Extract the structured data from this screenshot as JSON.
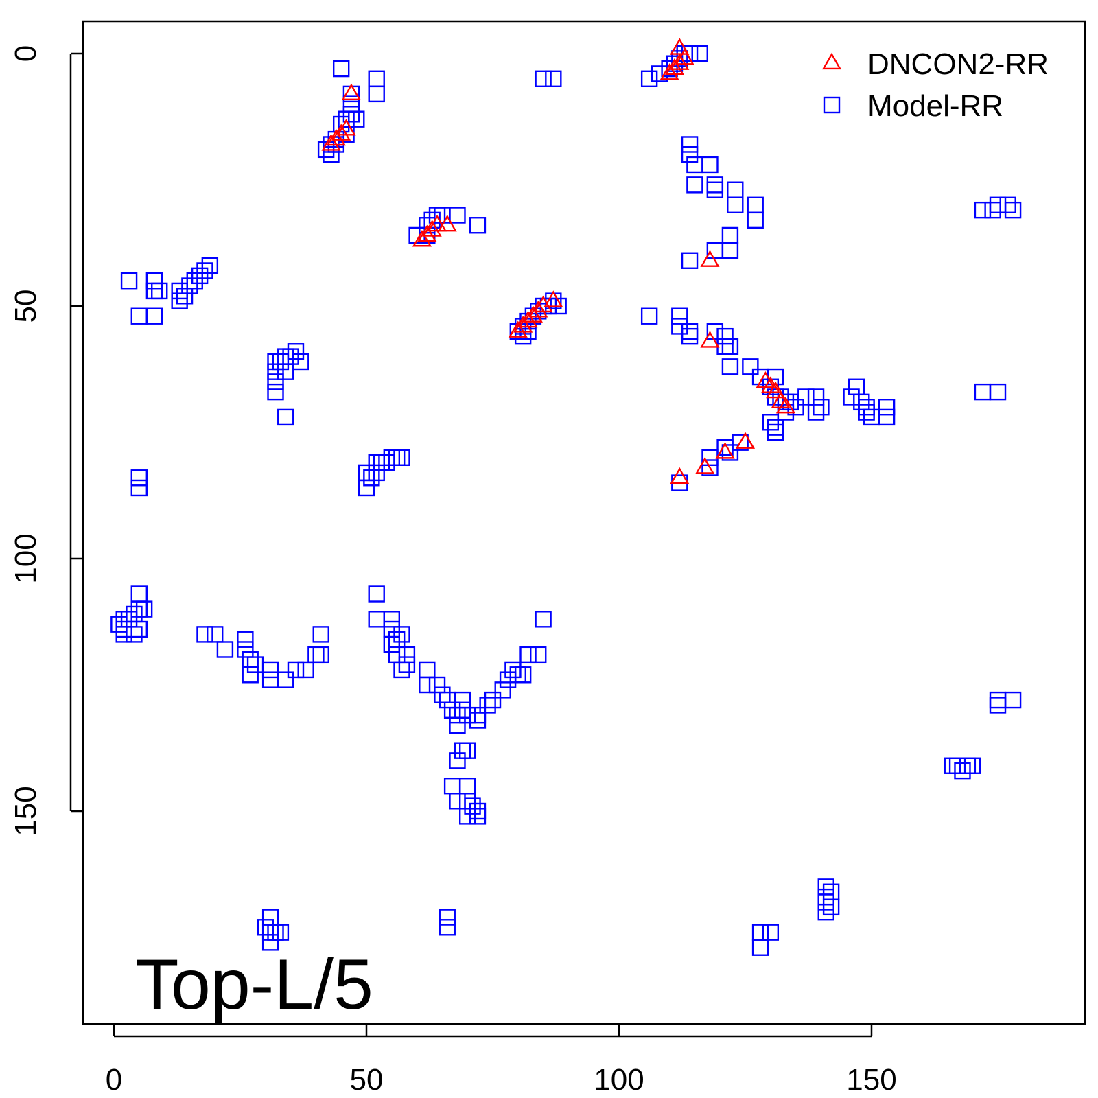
{
  "chart_data": {
    "type": "scatter",
    "title": "",
    "xlabel": "",
    "ylabel": "",
    "xlim": [
      -6,
      192
    ],
    "ylim": [
      -6,
      190
    ],
    "y_reversed": true,
    "x_ticks": [
      "0",
      "50",
      "100",
      "150"
    ],
    "x_tick_values": [
      0,
      50,
      100,
      150
    ],
    "y_ticks": [
      "0",
      "50",
      "100",
      "150"
    ],
    "y_tick_values": [
      0,
      50,
      100,
      150
    ],
    "annotation": "Top-L/5",
    "legend_position": "top-right",
    "series": [
      {
        "name": "DNCON2-RR",
        "marker": "triangle",
        "color": "#ff0000",
        "points": [
          [
            47,
            8
          ],
          [
            43,
            18
          ],
          [
            44,
            17
          ],
          [
            45,
            16
          ],
          [
            46,
            15
          ],
          [
            61,
            37
          ],
          [
            62,
            36
          ],
          [
            63,
            35
          ],
          [
            64,
            34
          ],
          [
            66,
            34
          ],
          [
            80,
            55
          ],
          [
            81,
            54
          ],
          [
            82,
            53
          ],
          [
            83,
            52
          ],
          [
            84,
            51
          ],
          [
            85,
            50
          ],
          [
            87,
            49
          ],
          [
            110,
            4
          ],
          [
            111,
            3
          ],
          [
            112,
            2
          ],
          [
            113,
            1
          ],
          [
            112,
            -1
          ],
          [
            118,
            41
          ],
          [
            118,
            57
          ],
          [
            129,
            65
          ],
          [
            130,
            66
          ],
          [
            131,
            67
          ],
          [
            132,
            69
          ],
          [
            133,
            70
          ],
          [
            125,
            77
          ],
          [
            121,
            79
          ],
          [
            117,
            82
          ],
          [
            112,
            84
          ]
        ]
      },
      {
        "name": "Model-RR",
        "marker": "square",
        "color": "#0000ff",
        "points": [
          [
            45,
            3
          ],
          [
            47,
            8
          ],
          [
            47,
            10
          ],
          [
            47,
            12
          ],
          [
            48,
            13
          ],
          [
            46,
            13
          ],
          [
            45,
            14
          ],
          [
            46,
            16
          ],
          [
            44,
            17
          ],
          [
            43,
            18
          ],
          [
            42,
            19
          ],
          [
            43,
            20
          ],
          [
            44,
            18
          ],
          [
            52,
            5
          ],
          [
            52,
            8
          ],
          [
            85,
            5
          ],
          [
            87,
            5
          ],
          [
            106,
            5
          ],
          [
            108,
            4
          ],
          [
            110,
            3
          ],
          [
            111,
            2
          ],
          [
            112,
            1
          ],
          [
            113,
            0
          ],
          [
            114,
            0
          ],
          [
            116,
            0
          ],
          [
            114,
            18
          ],
          [
            114,
            20
          ],
          [
            115,
            22
          ],
          [
            118,
            22
          ],
          [
            115,
            26
          ],
          [
            119,
            26
          ],
          [
            119,
            27
          ],
          [
            123,
            27
          ],
          [
            123,
            30
          ],
          [
            127,
            30
          ],
          [
            127,
            33
          ],
          [
            122,
            36
          ],
          [
            122,
            39
          ],
          [
            119,
            39
          ],
          [
            114,
            41
          ],
          [
            60,
            36
          ],
          [
            62,
            36
          ],
          [
            62,
            34
          ],
          [
            63,
            33
          ],
          [
            64,
            32
          ],
          [
            65,
            32
          ],
          [
            68,
            32
          ],
          [
            72,
            34
          ],
          [
            3,
            45
          ],
          [
            8,
            45
          ],
          [
            8,
            47
          ],
          [
            9,
            47
          ],
          [
            13,
            47
          ],
          [
            14,
            48
          ],
          [
            15,
            46
          ],
          [
            16,
            45
          ],
          [
            17,
            44
          ],
          [
            18,
            43
          ],
          [
            19,
            42
          ],
          [
            13,
            49
          ],
          [
            5,
            52
          ],
          [
            8,
            52
          ],
          [
            32,
            61
          ],
          [
            33,
            61
          ],
          [
            34,
            60
          ],
          [
            35,
            60
          ],
          [
            36,
            59
          ],
          [
            37,
            61
          ],
          [
            32,
            63
          ],
          [
            32,
            65
          ],
          [
            34,
            63
          ],
          [
            32,
            67
          ],
          [
            34,
            72
          ],
          [
            80,
            55
          ],
          [
            81,
            54
          ],
          [
            82,
            53
          ],
          [
            83,
            52
          ],
          [
            84,
            51
          ],
          [
            85,
            50
          ],
          [
            86,
            50
          ],
          [
            87,
            49
          ],
          [
            88,
            50
          ],
          [
            81,
            56
          ],
          [
            82,
            55
          ],
          [
            106,
            52
          ],
          [
            112,
            52
          ],
          [
            112,
            54
          ],
          [
            114,
            55
          ],
          [
            114,
            56
          ],
          [
            119,
            55
          ],
          [
            121,
            56
          ],
          [
            121,
            58
          ],
          [
            122,
            58
          ],
          [
            122,
            62
          ],
          [
            126,
            62
          ],
          [
            128,
            64
          ],
          [
            131,
            64
          ],
          [
            130,
            66
          ],
          [
            131,
            68
          ],
          [
            132,
            68
          ],
          [
            133,
            69
          ],
          [
            134,
            69
          ],
          [
            137,
            68
          ],
          [
            139,
            68
          ],
          [
            140,
            70
          ],
          [
            139,
            71
          ],
          [
            146,
            68
          ],
          [
            147,
            66
          ],
          [
            148,
            69
          ],
          [
            149,
            70
          ],
          [
            149,
            71
          ],
          [
            150,
            72
          ],
          [
            153,
            70
          ],
          [
            153,
            72
          ],
          [
            135,
            70
          ],
          [
            133,
            71
          ],
          [
            130,
            73
          ],
          [
            131,
            74
          ],
          [
            131,
            75
          ],
          [
            124,
            77
          ],
          [
            121,
            78
          ],
          [
            122,
            79
          ],
          [
            118,
            80
          ],
          [
            118,
            82
          ],
          [
            112,
            85
          ],
          [
            52,
            81
          ],
          [
            53,
            81
          ],
          [
            54,
            81
          ],
          [
            55,
            80
          ],
          [
            56,
            80
          ],
          [
            57,
            80
          ],
          [
            50,
            83
          ],
          [
            50,
            86
          ],
          [
            51,
            84
          ],
          [
            52,
            83
          ],
          [
            5,
            84
          ],
          [
            5,
            86
          ],
          [
            1,
            113
          ],
          [
            2,
            114
          ],
          [
            2,
            112
          ],
          [
            3,
            112
          ],
          [
            4,
            111
          ],
          [
            5,
            110
          ],
          [
            6,
            110
          ],
          [
            5,
            107
          ],
          [
            2,
            115
          ],
          [
            4,
            115
          ],
          [
            5,
            114
          ],
          [
            18,
            115
          ],
          [
            20,
            115
          ],
          [
            22,
            118
          ],
          [
            26,
            116
          ],
          [
            26,
            118
          ],
          [
            27,
            120
          ],
          [
            28,
            121
          ],
          [
            27,
            123
          ],
          [
            31,
            122
          ],
          [
            31,
            124
          ],
          [
            34,
            124
          ],
          [
            36,
            122
          ],
          [
            38,
            122
          ],
          [
            40,
            119
          ],
          [
            41,
            119
          ],
          [
            41,
            115
          ],
          [
            52,
            107
          ],
          [
            52,
            112
          ],
          [
            55,
            112
          ],
          [
            55,
            114
          ],
          [
            56,
            116
          ],
          [
            57,
            115
          ],
          [
            55,
            117
          ],
          [
            56,
            119
          ],
          [
            58,
            119
          ],
          [
            58,
            121
          ],
          [
            57,
            122
          ],
          [
            62,
            122
          ],
          [
            62,
            125
          ],
          [
            64,
            125
          ],
          [
            65,
            127
          ],
          [
            66,
            128
          ],
          [
            67,
            130
          ],
          [
            68,
            131
          ],
          [
            69,
            130
          ],
          [
            70,
            131
          ],
          [
            72,
            131
          ],
          [
            74,
            129
          ],
          [
            75,
            128
          ],
          [
            77,
            126
          ],
          [
            78,
            124
          ],
          [
            79,
            122
          ],
          [
            80,
            123
          ],
          [
            81,
            123
          ],
          [
            82,
            119
          ],
          [
            84,
            119
          ],
          [
            85,
            112
          ],
          [
            72,
            132
          ],
          [
            69,
            128
          ],
          [
            68,
            133
          ],
          [
            69,
            138
          ],
          [
            70,
            138
          ],
          [
            68,
            140
          ],
          [
            67,
            145
          ],
          [
            70,
            145
          ],
          [
            68,
            148
          ],
          [
            70,
            148
          ],
          [
            71,
            149
          ],
          [
            72,
            150
          ],
          [
            70,
            151
          ],
          [
            72,
            151
          ],
          [
            31,
            171
          ],
          [
            30,
            173
          ],
          [
            31,
            174
          ],
          [
            32,
            174
          ],
          [
            31,
            176
          ],
          [
            33,
            174
          ],
          [
            66,
            171
          ],
          [
            66,
            173
          ],
          [
            128,
            174
          ],
          [
            130,
            174
          ],
          [
            128,
            177
          ],
          [
            141,
            165
          ],
          [
            141,
            167
          ],
          [
            142,
            166
          ],
          [
            141,
            168
          ],
          [
            142,
            169
          ],
          [
            141,
            170
          ],
          [
            166,
            141
          ],
          [
            167,
            141
          ],
          [
            168,
            142
          ],
          [
            169,
            141
          ],
          [
            170,
            141
          ],
          [
            172,
            31
          ],
          [
            174,
            31
          ],
          [
            175,
            30
          ],
          [
            177,
            30
          ],
          [
            178,
            31
          ],
          [
            172,
            67
          ],
          [
            175,
            67
          ],
          [
            175,
            128
          ],
          [
            178,
            128
          ],
          [
            175,
            129
          ]
        ]
      }
    ]
  }
}
